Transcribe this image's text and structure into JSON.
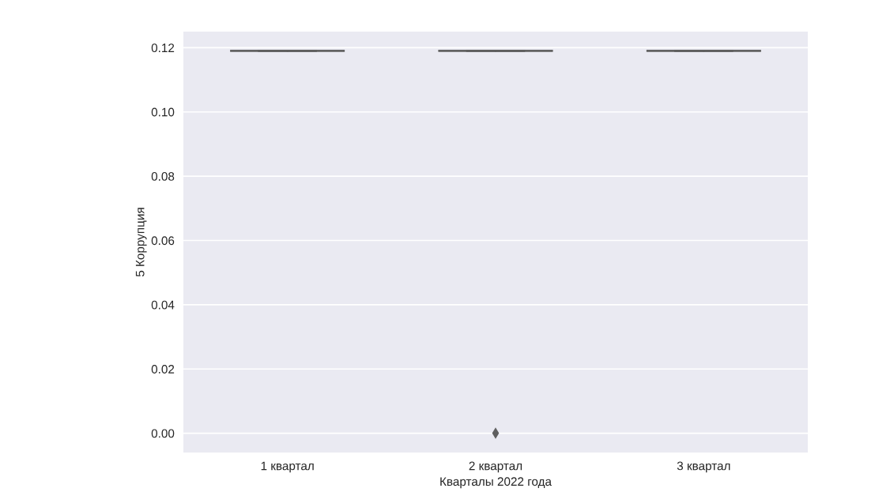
{
  "chart_data": {
    "type": "box",
    "xlabel": "Кварталы 2022 года",
    "ylabel": "5 Коррупция",
    "categories": [
      "1 квартал",
      "2 квартал",
      "3 квартал"
    ],
    "boxes": [
      {
        "low": 0.119,
        "q1": 0.119,
        "median": 0.119,
        "q3": 0.119,
        "high": 0.119
      },
      {
        "low": 0.119,
        "q1": 0.119,
        "median": 0.119,
        "q3": 0.119,
        "high": 0.119,
        "outliers": [
          0.0
        ]
      },
      {
        "low": 0.119,
        "q1": 0.119,
        "median": 0.119,
        "q3": 0.119,
        "high": 0.119
      }
    ],
    "color": "#5f5f5f",
    "ylim": [
      -0.006,
      0.125
    ],
    "yticks": [
      {
        "value": 0,
        "label": "0.00"
      },
      {
        "value": 0.02,
        "label": "0.02"
      },
      {
        "value": 0.04,
        "label": "0.04"
      },
      {
        "value": 0.06,
        "label": "0.06"
      },
      {
        "value": 0.08,
        "label": "0.08"
      },
      {
        "value": 0.1,
        "label": "0.10"
      },
      {
        "value": 0.12,
        "label": "0.12"
      }
    ],
    "grid": "y",
    "marker": "diamond"
  }
}
